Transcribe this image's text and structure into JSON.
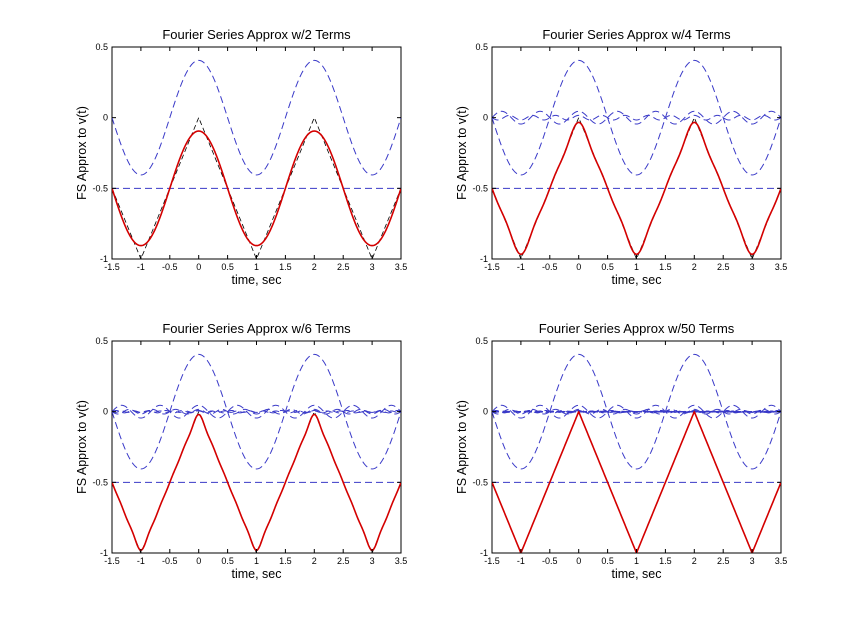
{
  "colors": {
    "approx": "#d40000",
    "components": "#3a3ac8",
    "target": "#000000"
  },
  "chart_data": [
    {
      "type": "line",
      "title": "Fourier Series Approx w/2 Terms",
      "xlabel": "time, sec",
      "ylabel": "FS Approx to v(t)",
      "xlim": [
        -1.5,
        3.5
      ],
      "ylim": [
        -1,
        0.5
      ],
      "xticks": [
        "-1.5",
        "-1",
        "-0.5",
        "0",
        "0.5",
        "1",
        "1.5",
        "2",
        "2.5",
        "3",
        "3.5"
      ],
      "yticks": [
        "-1",
        "-0.5",
        "0",
        "0.5"
      ],
      "grid": false,
      "terms": 2,
      "dc": -0.5,
      "period": 2
    },
    {
      "type": "line",
      "title": "Fourier Series Approx w/4 Terms",
      "xlabel": "time, sec",
      "ylabel": "FS Approx to v(t)",
      "xlim": [
        -1.5,
        3.5
      ],
      "ylim": [
        -1,
        0.5
      ],
      "xticks": [
        "-1.5",
        "-1",
        "-0.5",
        "0",
        "0.5",
        "1",
        "1.5",
        "2",
        "2.5",
        "3",
        "3.5"
      ],
      "yticks": [
        "-1",
        "-0.5",
        "0",
        "0.5"
      ],
      "grid": false,
      "terms": 4,
      "dc": -0.5,
      "period": 2
    },
    {
      "type": "line",
      "title": "Fourier Series Approx w/6 Terms",
      "xlabel": "time, sec",
      "ylabel": "FS Approx to v(t)",
      "xlim": [
        -1.5,
        3.5
      ],
      "ylim": [
        -1,
        0.5
      ],
      "xticks": [
        "-1.5",
        "-1",
        "-0.5",
        "0",
        "0.5",
        "1",
        "1.5",
        "2",
        "2.5",
        "3",
        "3.5"
      ],
      "yticks": [
        "-1",
        "-0.5",
        "0",
        "0.5"
      ],
      "grid": false,
      "terms": 6,
      "dc": -0.5,
      "period": 2
    },
    {
      "type": "line",
      "title": "Fourier Series Approx w/50 Terms",
      "xlabel": "time, sec",
      "ylabel": "FS Approx to v(t)",
      "xlim": [
        -1.5,
        3.5
      ],
      "ylim": [
        -1,
        0.5
      ],
      "xticks": [
        "-1.5",
        "-1",
        "-0.5",
        "0",
        "0.5",
        "1",
        "1.5",
        "2",
        "2.5",
        "3",
        "3.5"
      ],
      "yticks": [
        "-1",
        "-0.5",
        "0",
        "0.5"
      ],
      "grid": false,
      "terms": 50,
      "dc": -0.5,
      "period": 2
    }
  ]
}
